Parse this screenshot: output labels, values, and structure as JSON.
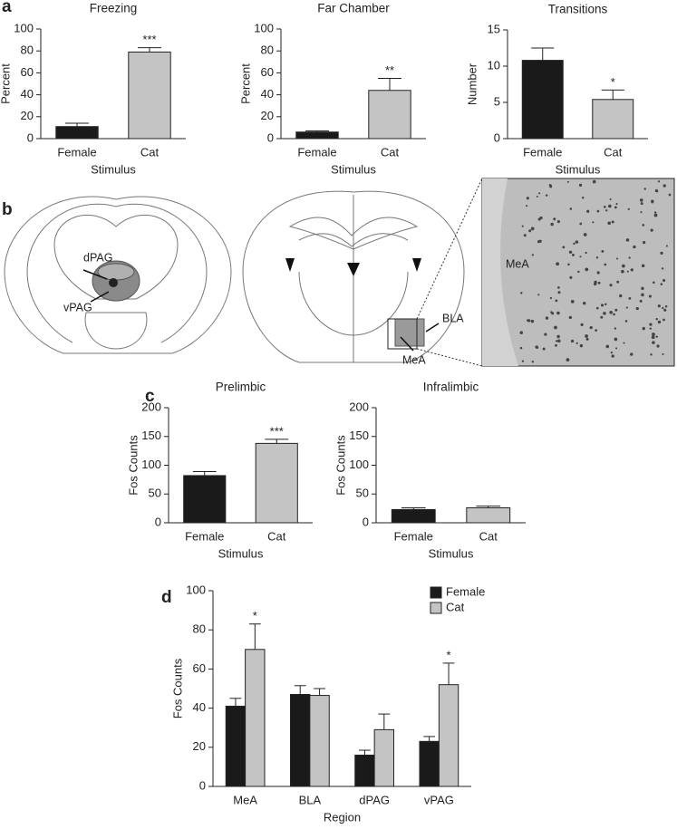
{
  "panels": [
    "a",
    "b",
    "c",
    "d"
  ],
  "brain_labels": [
    "dPAG",
    "vPAG",
    "BLA",
    "MeA",
    "MeA"
  ],
  "chart_data": [
    {
      "type": "bar",
      "title": "Freezing",
      "y_label": "Percent",
      "x_label": "Stimulus",
      "categories": [
        "Female",
        "Cat"
      ],
      "values": [
        11,
        79
      ],
      "errors": [
        3,
        4
      ],
      "colors": [
        "#1a1a1a",
        "#c4c4c4"
      ],
      "ylim": [
        0,
        100
      ],
      "yticks": [
        0,
        20,
        40,
        60,
        80,
        100
      ],
      "annotations": [
        {
          "category": "Cat",
          "text": "***"
        }
      ]
    },
    {
      "type": "bar",
      "title": "Far Chamber",
      "y_label": "Percent",
      "x_label": "Stimulus",
      "categories": [
        "Female",
        "Cat"
      ],
      "values": [
        6,
        44
      ],
      "errors": [
        1,
        11
      ],
      "colors": [
        "#1a1a1a",
        "#c4c4c4"
      ],
      "ylim": [
        0,
        100
      ],
      "yticks": [
        0,
        20,
        40,
        60,
        80,
        100
      ],
      "annotations": [
        {
          "category": "Cat",
          "text": "**"
        }
      ]
    },
    {
      "type": "bar",
      "title": "Transitions",
      "y_label": "Number",
      "x_label": "Stimulus",
      "categories": [
        "Female",
        "Cat"
      ],
      "values": [
        10.8,
        5.4
      ],
      "errors": [
        1.7,
        1.3
      ],
      "colors": [
        "#1a1a1a",
        "#c4c4c4"
      ],
      "ylim": [
        0,
        15
      ],
      "yticks": [
        0,
        5,
        10,
        15
      ],
      "annotations": [
        {
          "category": "Cat",
          "text": "*"
        }
      ]
    },
    {
      "type": "bar",
      "title": "Prelimbic",
      "y_label": "Fos Counts",
      "x_label": "Stimulus",
      "categories": [
        "Female",
        "Cat"
      ],
      "values": [
        82,
        138
      ],
      "errors": [
        7,
        7
      ],
      "colors": [
        "#1a1a1a",
        "#c4c4c4"
      ],
      "ylim": [
        0,
        200
      ],
      "yticks": [
        0,
        50,
        100,
        150,
        200
      ],
      "annotations": [
        {
          "category": "Cat",
          "text": "***"
        }
      ]
    },
    {
      "type": "bar",
      "title": "Infralimbic",
      "y_label": "Fos Counts",
      "x_label": "Stimulus",
      "categories": [
        "Female",
        "Cat"
      ],
      "values": [
        23,
        26
      ],
      "errors": [
        3,
        3
      ],
      "colors": [
        "#1a1a1a",
        "#c4c4c4"
      ],
      "ylim": [
        0,
        200
      ],
      "yticks": [
        0,
        50,
        100,
        150,
        200
      ],
      "annotations": []
    },
    {
      "type": "grouped_bar",
      "y_label": "Fos Counts",
      "x_label": "Region",
      "categories": [
        "MeA",
        "BLA",
        "dPAG",
        "vPAG"
      ],
      "series": [
        {
          "name": "Female",
          "color": "#1a1a1a",
          "values": [
            41,
            47,
            16,
            23
          ],
          "errors": [
            4,
            4.5,
            2.5,
            2.5
          ]
        },
        {
          "name": "Cat",
          "color": "#c4c4c4",
          "values": [
            70,
            46.5,
            29,
            52
          ],
          "errors": [
            13,
            3.5,
            8,
            11
          ]
        }
      ],
      "ylim": [
        0,
        100
      ],
      "yticks": [
        0,
        20,
        40,
        60,
        80,
        100
      ],
      "legend": "upper right",
      "annotations": [
        {
          "series": "Cat",
          "category": "MeA",
          "text": "*"
        },
        {
          "series": "Cat",
          "category": "vPAG",
          "text": "*"
        }
      ]
    }
  ]
}
